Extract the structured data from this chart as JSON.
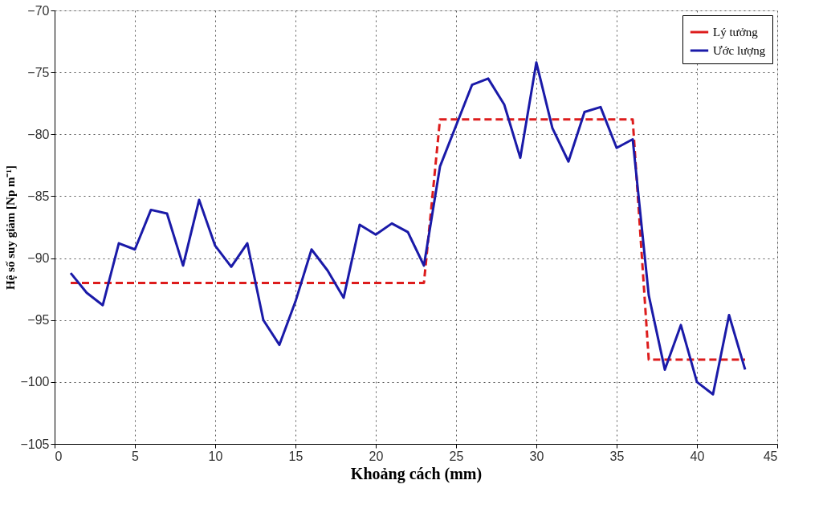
{
  "chart_data": {
    "type": "line",
    "xlabel": "Khoảng cách (mm)",
    "ylabel": "Hệ số suy giảm [Np m⁻¹]",
    "xlim": [
      0,
      45
    ],
    "xticks": [
      0,
      5,
      10,
      15,
      20,
      25,
      30,
      35,
      40,
      45
    ],
    "ylim": [
      -105,
      -70
    ],
    "yticks": [
      -105,
      -100,
      -95,
      -90,
      -85,
      -80,
      -75,
      -70
    ],
    "grid": true,
    "legend": "top right",
    "marker": "none",
    "series": [
      {
        "name": "Lý tưởng",
        "color": "#dd1c1c",
        "line_style": "dashed",
        "x": [
          1,
          23,
          24,
          36,
          37,
          43
        ],
        "values": [
          -92,
          -92,
          -78.8,
          -78.8,
          -98.2,
          -98.2
        ]
      },
      {
        "name": "Ước lượng",
        "color": "#1a1aa8",
        "line_style": "solid",
        "x": [
          1,
          2,
          3,
          4,
          5,
          6,
          7,
          8,
          9,
          10,
          11,
          12,
          13,
          14,
          15,
          16,
          17,
          18,
          19,
          20,
          21,
          22,
          23,
          24,
          25,
          26,
          27,
          28,
          29,
          30,
          31,
          32,
          33,
          34,
          35,
          36,
          37,
          38,
          39,
          40,
          41,
          42,
          43
        ],
        "values": [
          -91.2,
          -92.8,
          -93.8,
          -88.8,
          -89.3,
          -86.1,
          -86.4,
          -90.6,
          -85.3,
          -89,
          -90.7,
          -88.8,
          -95,
          -97,
          -93.5,
          -89.3,
          -91,
          -93.2,
          -87.3,
          -88.1,
          -87.2,
          -87.9,
          -90.6,
          -82.6,
          -79.3,
          -76,
          -75.5,
          -77.6,
          -81.9,
          -74.2,
          -79.5,
          -82.2,
          -78.2,
          -77.8,
          -81.1,
          -80.4,
          -93,
          -99,
          -95.4,
          -100,
          -101,
          -94.6,
          -99
        ]
      }
    ]
  }
}
